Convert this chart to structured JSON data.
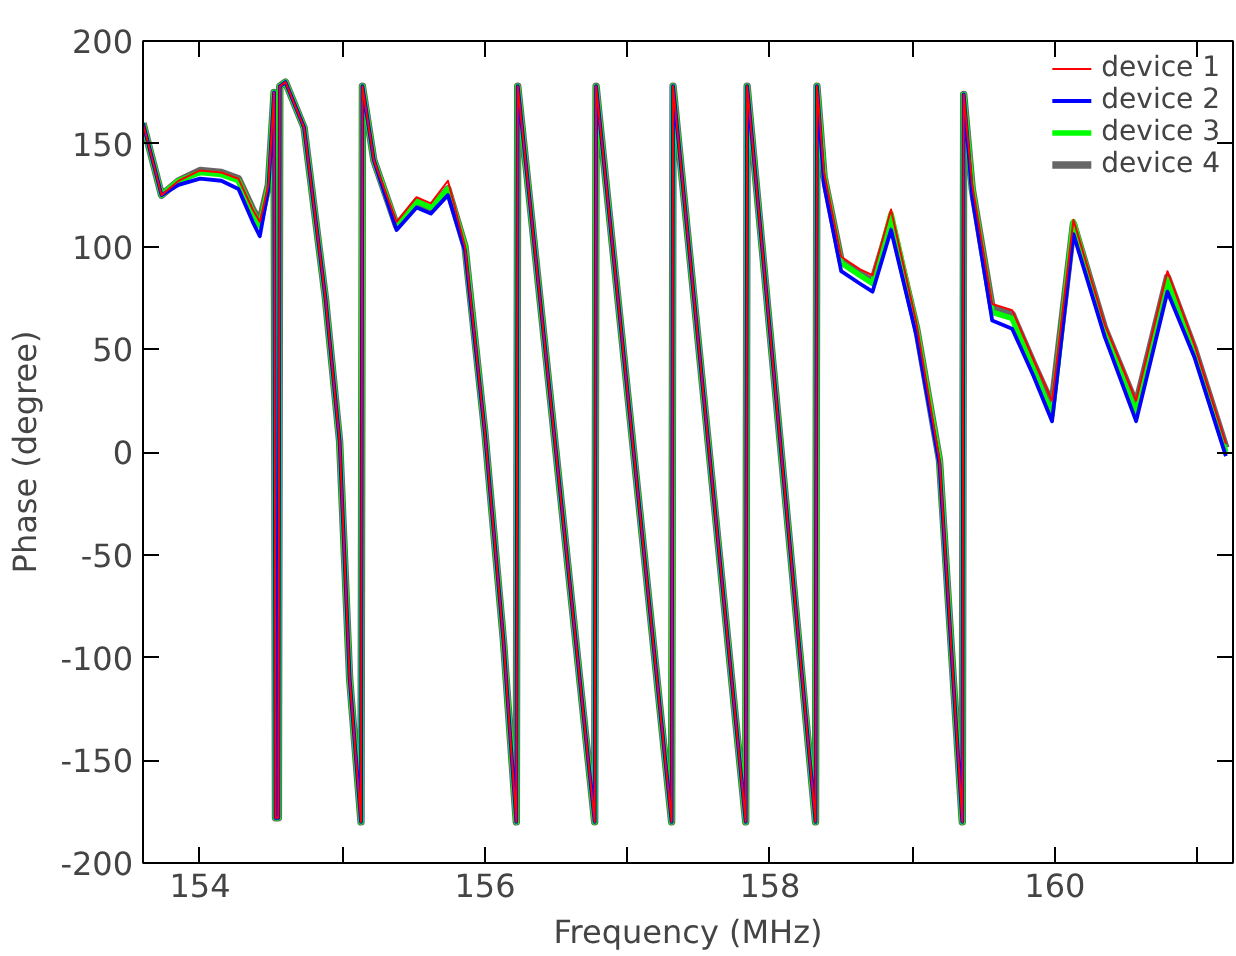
{
  "chart_data": {
    "type": "line",
    "xlabel": "Frequency (MHz)",
    "ylabel": "Phase (degree)",
    "x": [
      153.6,
      153.73,
      153.85,
      154.0,
      154.15,
      154.27,
      154.37,
      154.42,
      154.48,
      154.52,
      154.53,
      154.55,
      154.56,
      154.6,
      154.73,
      154.88,
      154.98,
      155.05,
      155.13,
      155.14,
      155.22,
      155.38,
      155.52,
      155.62,
      155.74,
      155.86,
      156.0,
      156.13,
      156.22,
      156.23,
      156.77,
      156.78,
      157.31,
      157.32,
      157.83,
      157.84,
      158.32,
      158.33,
      158.38,
      158.5,
      158.63,
      158.72,
      158.85,
      159.03,
      159.19,
      159.35,
      159.36,
      159.42,
      159.56,
      159.7,
      159.85,
      159.98,
      160.13,
      160.35,
      160.57,
      160.79,
      160.98,
      161.2
    ],
    "series": [
      {
        "name": "device 1",
        "color": "#ff0000",
        "values": [
          160,
          125,
          132,
          137,
          136,
          133,
          118,
          112,
          130,
          175,
          -178,
          -178,
          178,
          180,
          158,
          75,
          5,
          -110,
          -180,
          178,
          142,
          112,
          124,
          121,
          132,
          100,
          9,
          -92,
          -180,
          178,
          -180,
          178,
          -180,
          178,
          -180,
          178,
          -180,
          178,
          136,
          95,
          89,
          86,
          118,
          62,
          -4,
          -180,
          174,
          130,
          72,
          69,
          45,
          25,
          113,
          62,
          25,
          88,
          52,
          4
        ],
        "type": "line"
      },
      {
        "name": "device 2",
        "color": "#0000ff",
        "values": [
          160,
          125,
          130,
          133,
          132,
          128,
          112,
          105,
          128,
          175,
          -178,
          -178,
          178,
          180,
          158,
          75,
          5,
          -110,
          -180,
          178,
          142,
          108,
          119,
          116,
          125,
          98,
          9,
          -92,
          -180,
          178,
          -180,
          178,
          -180,
          178,
          -180,
          178,
          -180,
          178,
          130,
          88,
          82,
          78,
          108,
          56,
          -6,
          -180,
          174,
          124,
          64,
          60,
          37,
          15,
          106,
          56,
          15,
          78,
          46,
          -2
        ]
      },
      {
        "name": "device 3",
        "color": "#00ff00",
        "values": [
          160,
          125,
          132,
          136,
          135,
          132,
          117,
          110,
          129,
          175,
          -178,
          -178,
          178,
          180,
          158,
          75,
          5,
          -110,
          -180,
          178,
          142,
          110,
          122,
          119,
          128,
          100,
          9,
          -92,
          -180,
          178,
          -180,
          178,
          -180,
          178,
          -180,
          178,
          -180,
          178,
          134,
          92,
          86,
          82,
          116,
          60,
          -4,
          -180,
          174,
          128,
          68,
          65,
          40,
          18,
          112,
          58,
          19,
          84,
          48,
          0
        ]
      },
      {
        "name": "device 4",
        "color": "#666666",
        "values": [
          160,
          125,
          132,
          137,
          136,
          133,
          118,
          112,
          130,
          175,
          -178,
          -178,
          178,
          180,
          158,
          75,
          5,
          -110,
          -180,
          178,
          142,
          110,
          122,
          118,
          128,
          100,
          9,
          -92,
          -180,
          178,
          -180,
          178,
          -180,
          178,
          -180,
          178,
          -180,
          178,
          134,
          93,
          87,
          83,
          113,
          60,
          -4,
          -180,
          174,
          128,
          70,
          67,
          43,
          23,
          111,
          60,
          23,
          85,
          50,
          2
        ]
      }
    ],
    "xlim": [
      153.6,
      161.25
    ],
    "ylim": [
      -200,
      200
    ],
    "xticks": [
      154,
      {
        "value": 155,
        "label": null
      },
      156,
      {
        "value": 157,
        "label": null
      },
      158,
      {
        "value": 159,
        "label": null
      },
      160,
      {
        "value": 161,
        "label": null
      }
    ],
    "yticks": [
      -200,
      -150,
      -100,
      -50,
      0,
      50,
      100,
      150,
      200
    ],
    "legend": "top right",
    "grid": false
  }
}
